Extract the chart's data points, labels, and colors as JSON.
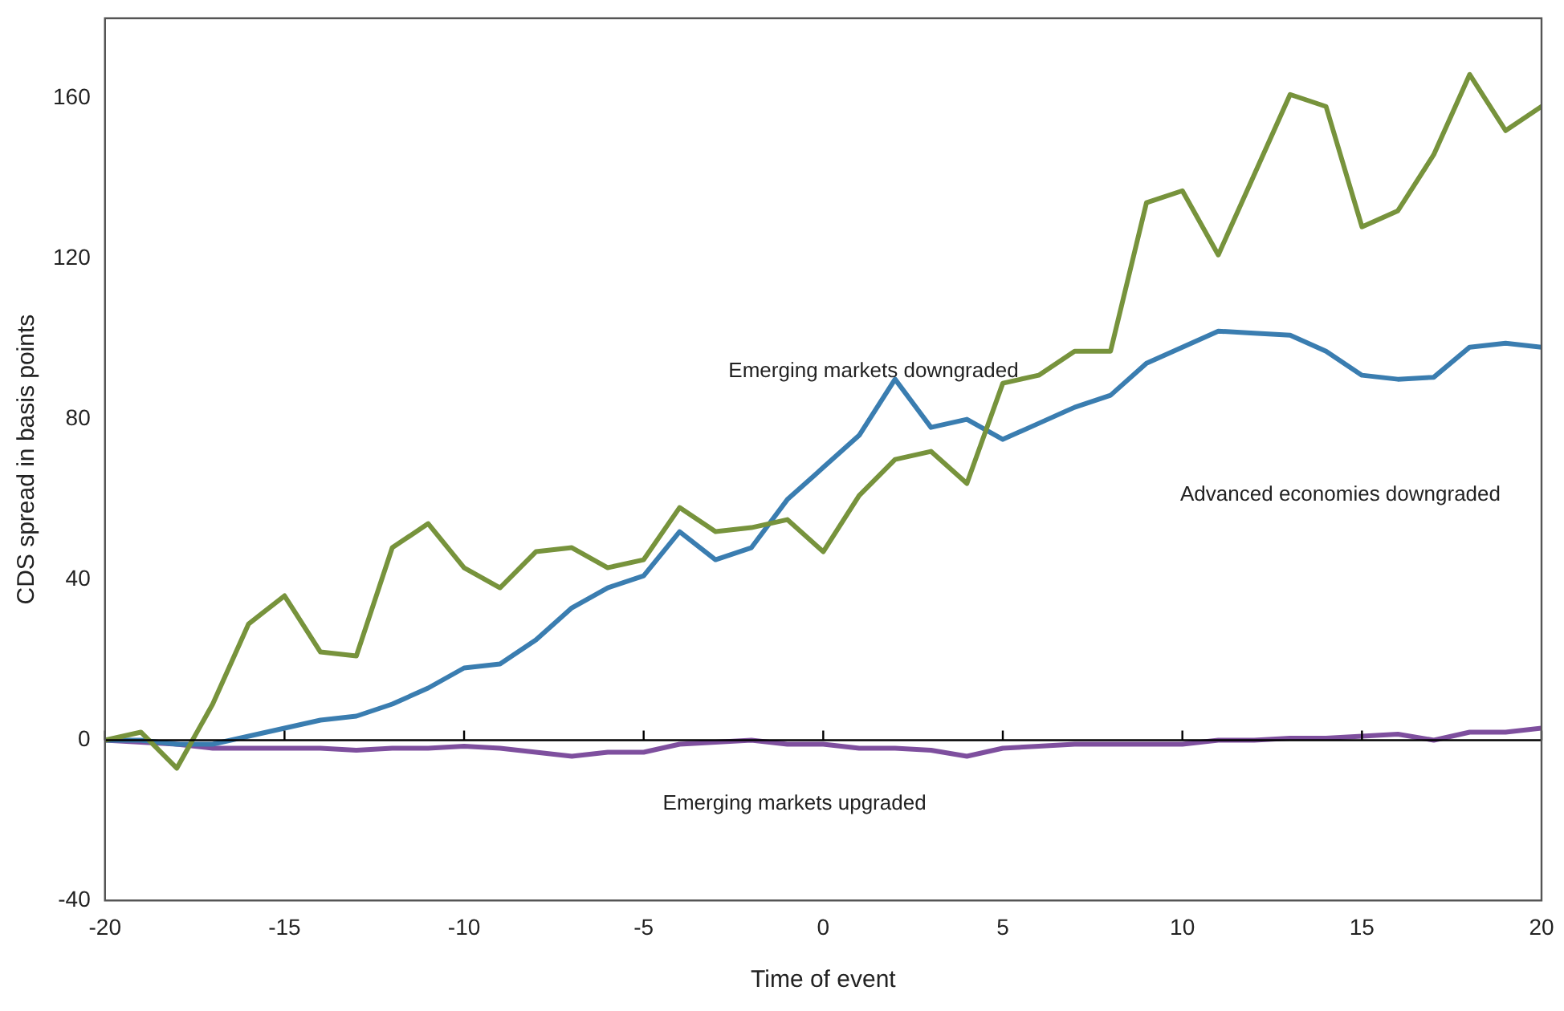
{
  "chart_data": {
    "type": "line",
    "xlabel": "Time of event",
    "ylabel": "CDS spread in basis points",
    "x": [
      -20,
      -19,
      -18,
      -17,
      -16,
      -15,
      -14,
      -13,
      -12,
      -11,
      -10,
      -9,
      -8,
      -7,
      -6,
      -5,
      -4,
      -3,
      -2,
      -1,
      0,
      1,
      2,
      3,
      4,
      5,
      6,
      7,
      8,
      9,
      10,
      11,
      12,
      13,
      14,
      15,
      16,
      17,
      18,
      19,
      20
    ],
    "series": [
      {
        "color": "#77933c",
        "values": [
          0,
          2,
          -7,
          9,
          29,
          36,
          22,
          21,
          48,
          54,
          43,
          38,
          47,
          48,
          43,
          45,
          58,
          52,
          53,
          55,
          47,
          61,
          70,
          72,
          64,
          89,
          91,
          97,
          97,
          134,
          137,
          121,
          141,
          161,
          158,
          128,
          132,
          146,
          166,
          152,
          158
        ]
      },
      {
        "color": "#3a7db0",
        "values": [
          0,
          0,
          -1,
          -1,
          1,
          3,
          5,
          6,
          9,
          13,
          18,
          19,
          25,
          33,
          38,
          41,
          52,
          45,
          48,
          60,
          68,
          76,
          90,
          78,
          80,
          75,
          79,
          83,
          86,
          94,
          98,
          102,
          101.5,
          101,
          97,
          91,
          90,
          90.5,
          98,
          99,
          98
        ]
      },
      {
        "color": "#7e4f9e",
        "values": [
          0,
          -0.5,
          -1,
          -2,
          -2,
          -2,
          -2,
          -2.5,
          -2,
          -2,
          -1.5,
          -2,
          -3,
          -4,
          -3,
          -3,
          -1,
          -0.5,
          0,
          -1,
          -1,
          -2,
          -2,
          -2.5,
          -4,
          -2,
          -1.5,
          -1,
          -1,
          -1,
          -1,
          0,
          0,
          0.5,
          0.5,
          1,
          1.5,
          0,
          2,
          2,
          3
        ]
      }
    ],
    "xlim": [
      -20,
      20
    ],
    "xticks": [
      -20,
      -15,
      -10,
      -5,
      0,
      5,
      10,
      15,
      20
    ],
    "ylim": [
      -40,
      180
    ],
    "yticks": [
      -40,
      0,
      40,
      80,
      120,
      160
    ],
    "grid": false,
    "legend": false,
    "marker": "none",
    "line_style": "solid",
    "ref_lines": [
      {
        "axis": "y",
        "value": 0,
        "color": "#000000"
      }
    ],
    "annotations": [
      "Emerging markets downgraded",
      "Advanced economies downgraded",
      "Emerging markets upgraded"
    ]
  }
}
